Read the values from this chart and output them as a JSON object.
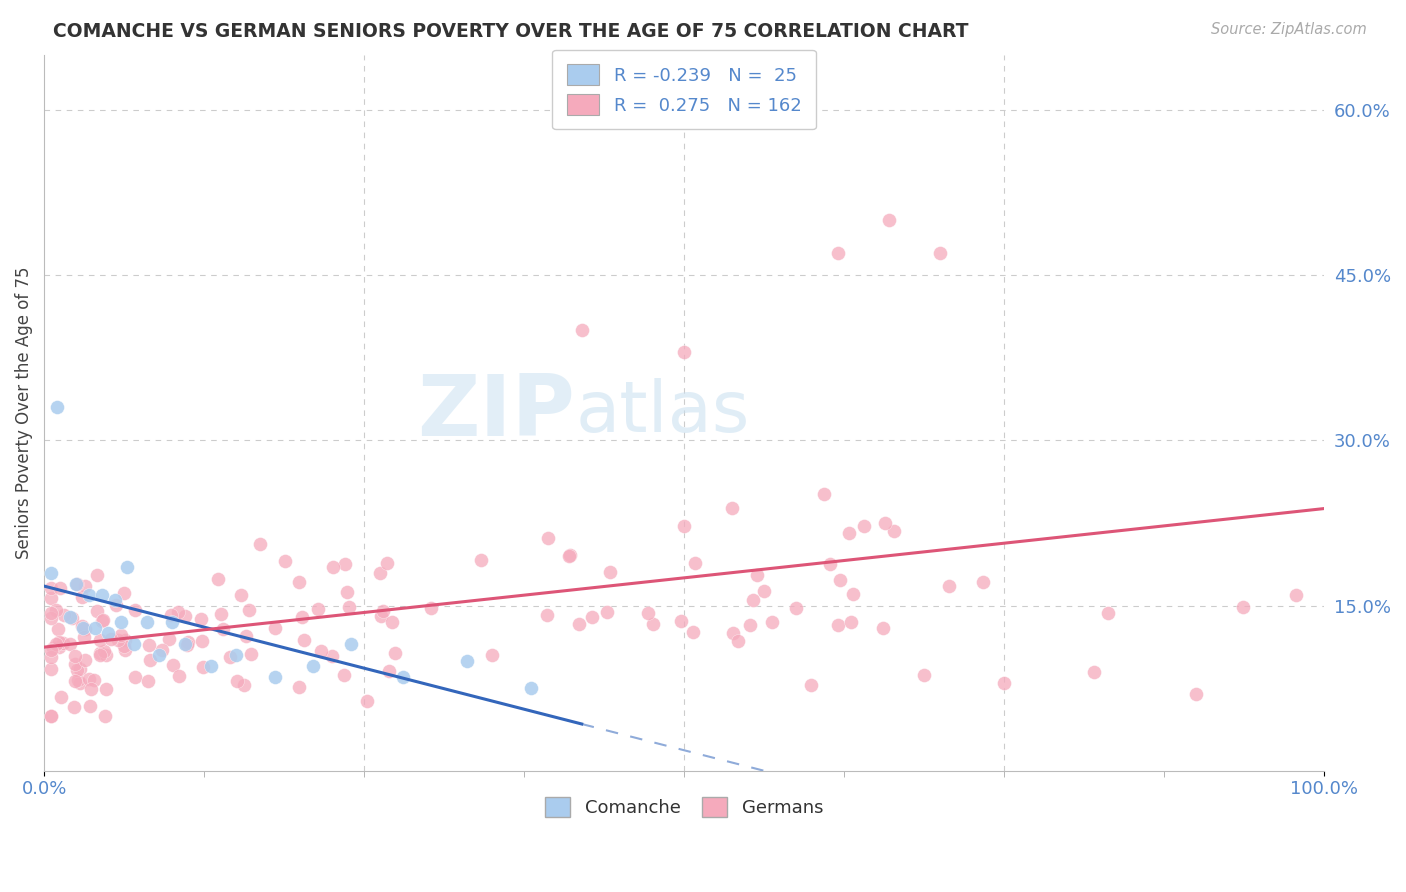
{
  "title": "COMANCHE VS GERMAN SENIORS POVERTY OVER THE AGE OF 75 CORRELATION CHART",
  "source": "Source: ZipAtlas.com",
  "ylabel": "Seniors Poverty Over the Age of 75",
  "watermark_zip": "ZIP",
  "watermark_atlas": "atlas",
  "legend_comanche": "Comanche",
  "legend_german": "Germans",
  "comanche_R": "-0.239",
  "comanche_N": "25",
  "german_R": "0.275",
  "german_N": "162",
  "comanche_color": "#aaccee",
  "german_color": "#f5aabc",
  "comanche_line_color": "#3366bb",
  "german_line_color": "#dd5577",
  "axis_color": "#5588cc",
  "xlim": [
    0,
    1.0
  ],
  "ylim": [
    0,
    0.65
  ],
  "background_color": "#ffffff",
  "grid_color": "#cccccc"
}
